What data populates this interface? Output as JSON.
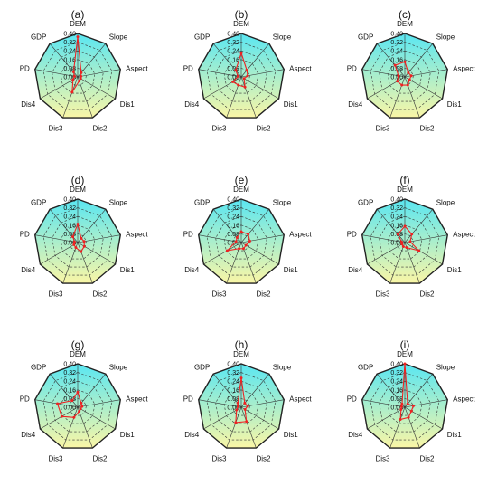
{
  "chart_data": [
    {
      "type": "radar",
      "panel_label": "(a)",
      "axes": [
        "DEM",
        "Slope",
        "Aspect",
        "Dis1",
        "Dis2",
        "Dis3",
        "Dis4",
        "PD",
        "GDP"
      ],
      "ticks": [
        "0.00",
        "0.08",
        "0.16",
        "0.24",
        "0.32",
        "0.40"
      ],
      "range": [
        0,
        0.4
      ],
      "series": [
        {
          "values": [
            0.37,
            0.05,
            0.03,
            0.03,
            0.04,
            0.15,
            0.05,
            0.03,
            0.06
          ]
        }
      ]
    },
    {
      "type": "radar",
      "panel_label": "(b)",
      "axes": [
        "DEM",
        "Slope",
        "Aspect",
        "Dis1",
        "Dis2",
        "Dis3",
        "Dis4",
        "PD",
        "GDP"
      ],
      "ticks": [
        "0.00",
        "0.08",
        "0.16",
        "0.24",
        "0.32",
        "0.40"
      ],
      "range": [
        0,
        0.4
      ],
      "series": [
        {
          "values": [
            0.22,
            0.08,
            0.06,
            0.03,
            0.1,
            0.08,
            0.09,
            0.03,
            0.08
          ]
        }
      ]
    },
    {
      "type": "radar",
      "panel_label": "(c)",
      "axes": [
        "DEM",
        "Slope",
        "Aspect",
        "Dis1",
        "Dis2",
        "Dis3",
        "Dis4",
        "PD",
        "GDP"
      ],
      "ticks": [
        "0.00",
        "0.08",
        "0.16",
        "0.24",
        "0.32",
        "0.40"
      ],
      "range": [
        0,
        0.4
      ],
      "series": [
        {
          "values": [
            0.14,
            0.05,
            0.06,
            0.05,
            0.08,
            0.08,
            0.08,
            0.06,
            0.14
          ]
        }
      ]
    },
    {
      "type": "radar",
      "panel_label": "(d)",
      "axes": [
        "DEM",
        "Slope",
        "Aspect",
        "Dis1",
        "Dis2",
        "Dis3",
        "Dis4",
        "PD",
        "GDP"
      ],
      "ticks": [
        "0.00",
        "0.08",
        "0.16",
        "0.24",
        "0.32",
        "0.40"
      ],
      "range": [
        0,
        0.4
      ],
      "series": [
        {
          "values": [
            0.17,
            0.05,
            0.06,
            0.07,
            0.09,
            0.05,
            0.04,
            0.03,
            0.07
          ]
        }
      ]
    },
    {
      "type": "radar",
      "panel_label": "(e)",
      "axes": [
        "DEM",
        "Slope",
        "Aspect",
        "Dis1",
        "Dis2",
        "Dis3",
        "Dis4",
        "PD",
        "GDP"
      ],
      "ticks": [
        "0.00",
        "0.08",
        "0.16",
        "0.24",
        "0.32",
        "0.40"
      ],
      "range": [
        0,
        0.4
      ],
      "series": [
        {
          "values": [
            0.1,
            0.1,
            0.08,
            0.05,
            0.06,
            0.06,
            0.15,
            0.05,
            0.06
          ]
        }
      ]
    },
    {
      "type": "radar",
      "panel_label": "(f)",
      "axes": [
        "DEM",
        "Slope",
        "Aspect",
        "Dis1",
        "Dis2",
        "Dis3",
        "Dis4",
        "PD",
        "GDP"
      ],
      "ticks": [
        "0.00",
        "0.08",
        "0.16",
        "0.24",
        "0.32",
        "0.40"
      ],
      "range": [
        0,
        0.4
      ],
      "series": [
        {
          "values": [
            0.15,
            0.1,
            0.05,
            0.15,
            0.05,
            0.04,
            0.03,
            0.03,
            0.1
          ]
        }
      ]
    },
    {
      "type": "radar",
      "panel_label": "(g)",
      "axes": [
        "DEM",
        "Slope",
        "Aspect",
        "Dis1",
        "Dis2",
        "Dis3",
        "Dis4",
        "PD",
        "GDP"
      ],
      "ticks": [
        "0.00",
        "0.08",
        "0.16",
        "0.24",
        "0.32",
        "0.40"
      ],
      "range": [
        0,
        0.4
      ],
      "series": [
        {
          "values": [
            0.14,
            0.05,
            0.04,
            0.03,
            0.04,
            0.1,
            0.17,
            0.19,
            0.08
          ]
        }
      ]
    },
    {
      "type": "radar",
      "panel_label": "(h)",
      "axes": [
        "DEM",
        "Slope",
        "Aspect",
        "Dis1",
        "Dis2",
        "Dis3",
        "Dis4",
        "PD",
        "GDP"
      ],
      "ticks": [
        "0.00",
        "0.08",
        "0.16",
        "0.24",
        "0.32",
        "0.40"
      ],
      "range": [
        0,
        0.4
      ],
      "series": [
        {
          "values": [
            0.27,
            0.05,
            0.06,
            0.04,
            0.14,
            0.15,
            0.05,
            0.03,
            0.05
          ]
        }
      ]
    },
    {
      "type": "radar",
      "panel_label": "(i)",
      "axes": [
        "DEM",
        "Slope",
        "Aspect",
        "Dis1",
        "Dis2",
        "Dis3",
        "Dis4",
        "PD",
        "GDP"
      ],
      "ticks": [
        "0.00",
        "0.08",
        "0.16",
        "0.24",
        "0.32",
        "0.40"
      ],
      "range": [
        0,
        0.4
      ],
      "series": [
        {
          "values": [
            0.4,
            0.04,
            0.08,
            0.07,
            0.1,
            0.12,
            0.04,
            0.03,
            0.04
          ]
        }
      ]
    }
  ],
  "colors": {
    "fill_top": "#59e6f2",
    "fill_bottom": "#faf6a6",
    "series": "#ee2222",
    "frame": "#222222",
    "grid": "#333333"
  }
}
